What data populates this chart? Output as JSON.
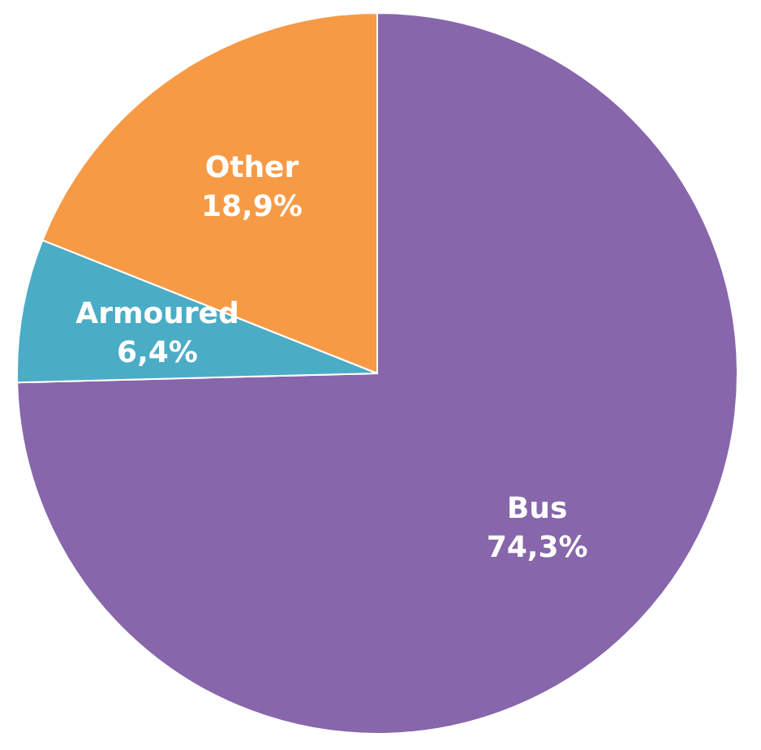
{
  "chart_data": {
    "type": "pie",
    "categories": [
      "Bus",
      "Armoured",
      "Other"
    ],
    "values": [
      74.3,
      6.4,
      18.9
    ],
    "colors": [
      "#8766ab",
      "#4bacc6",
      "#f79a46"
    ],
    "value_labels": [
      "74,3%",
      "6,4%",
      "18,9%"
    ],
    "legend": false
  }
}
